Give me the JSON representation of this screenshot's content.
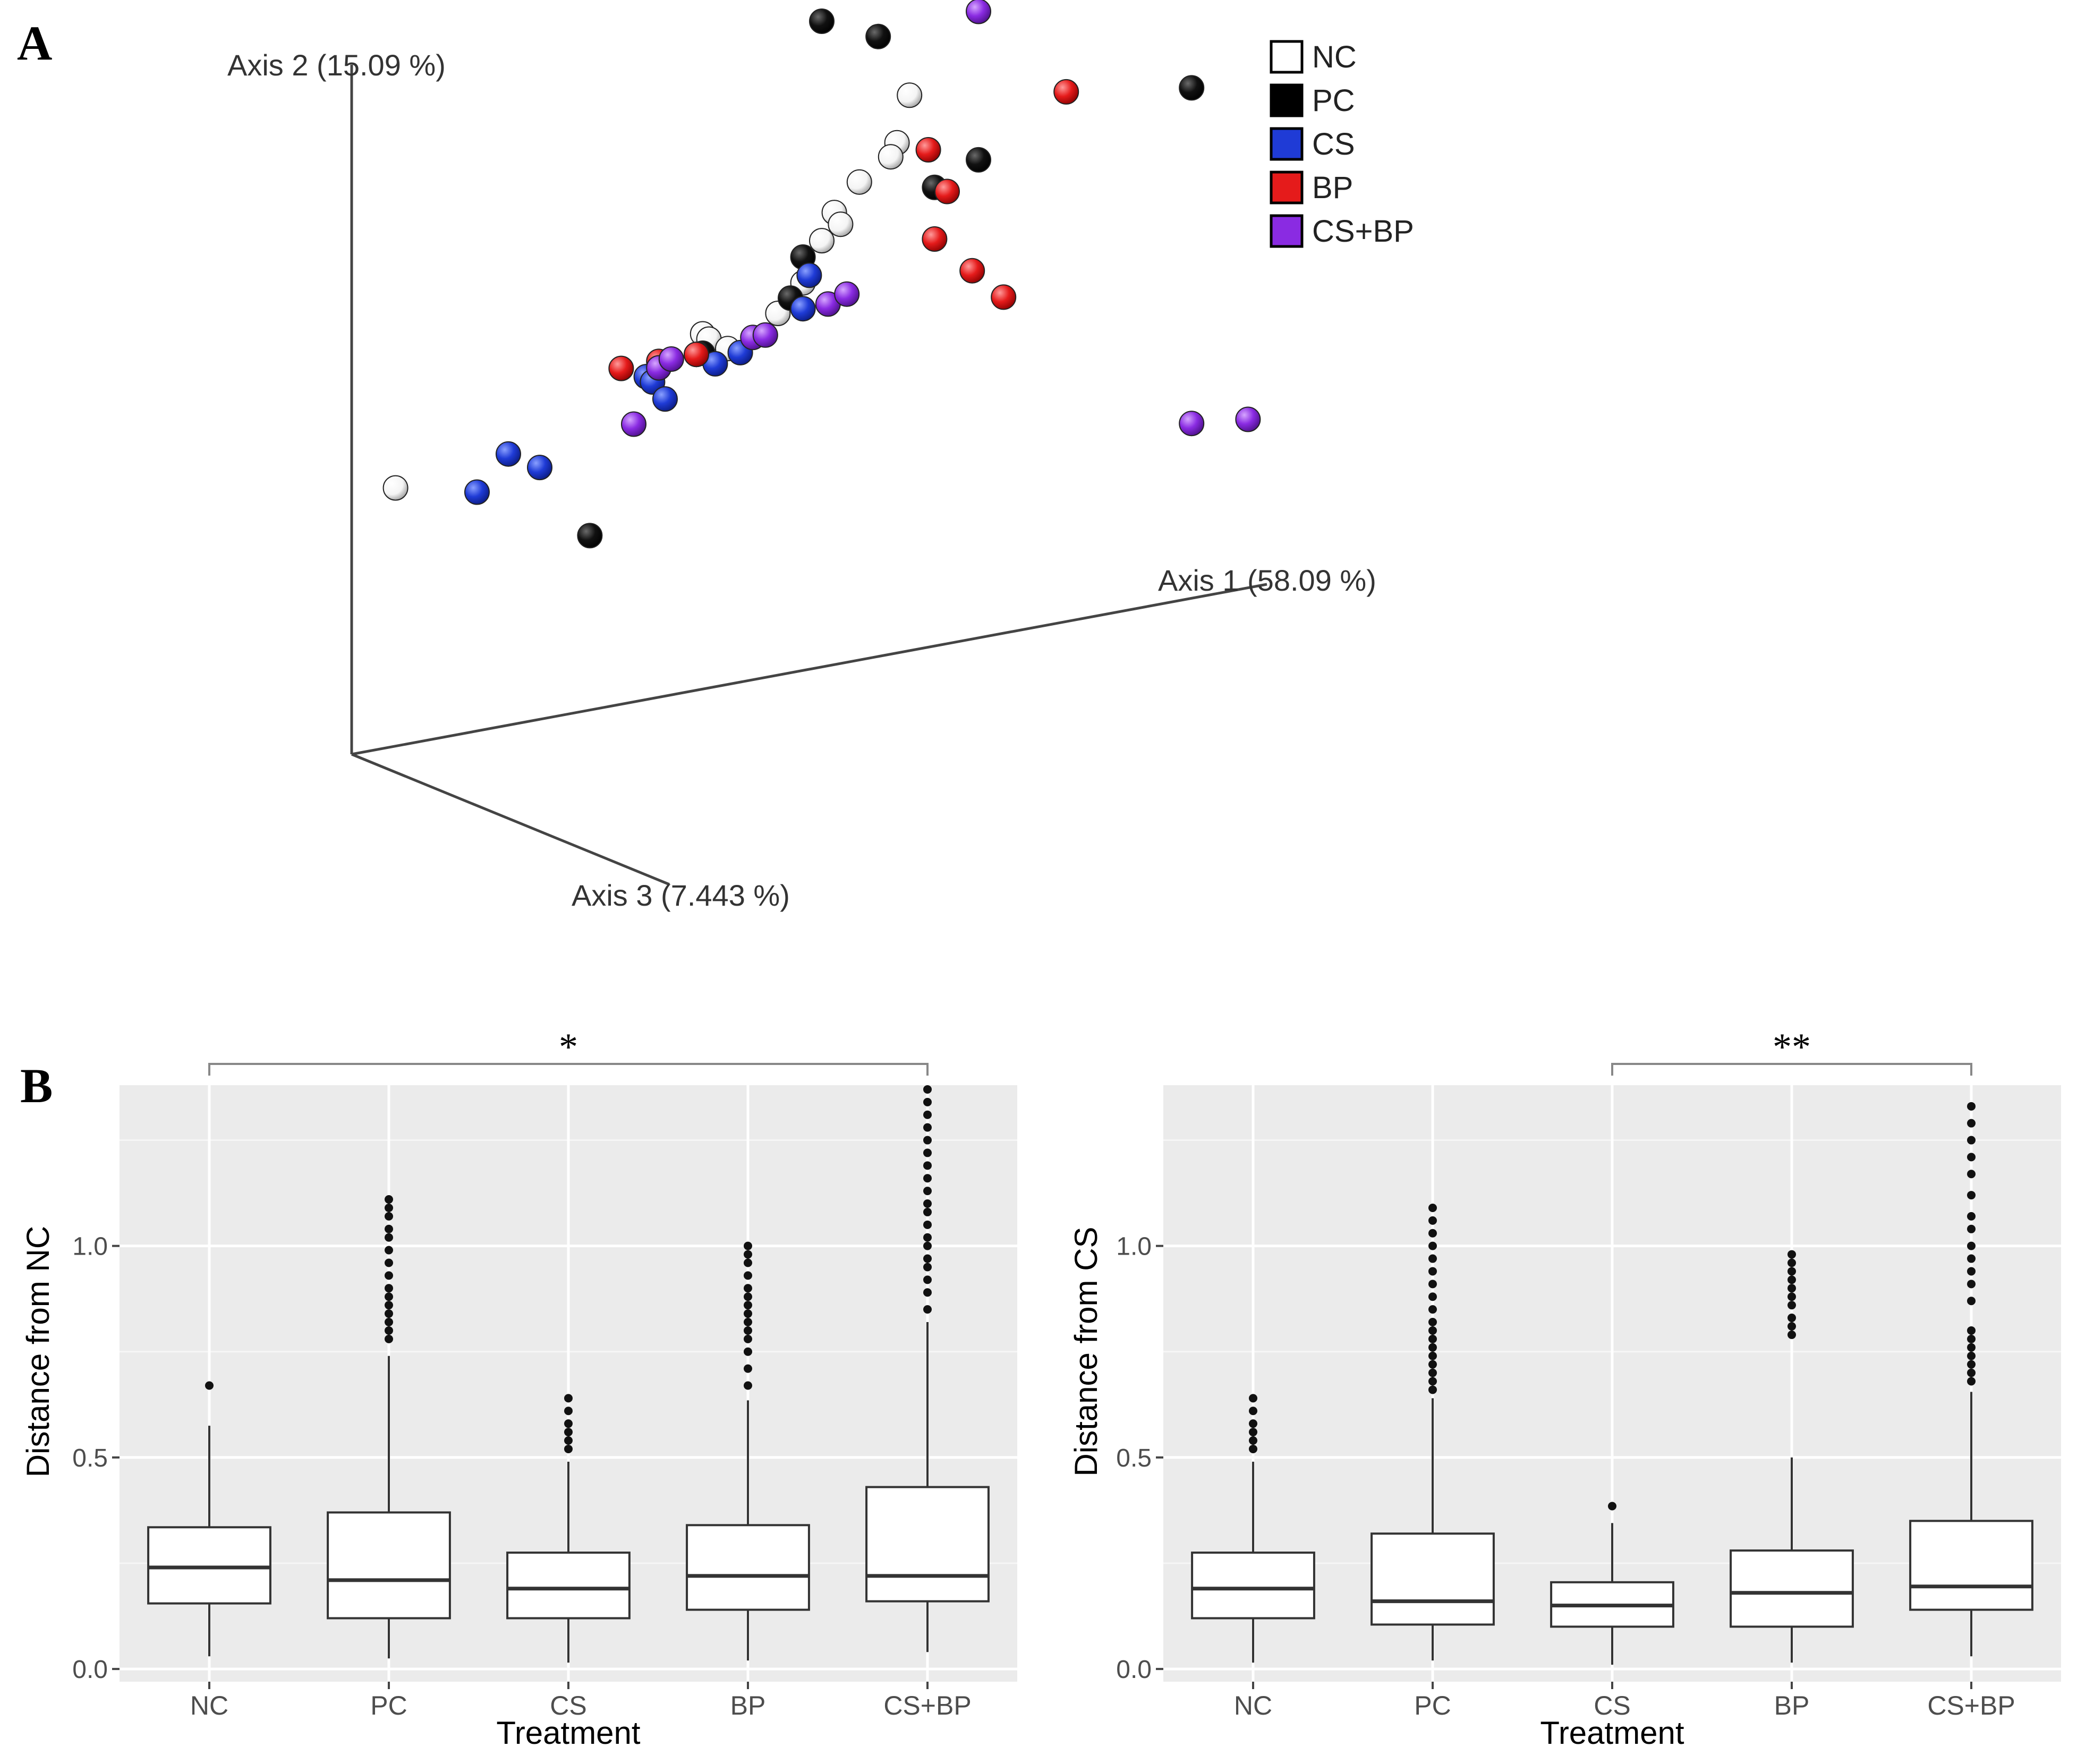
{
  "panel_a": {
    "label": "A",
    "chart_data": {
      "type": "scatter",
      "title": "",
      "axis_labels": [
        "Axis 1 (58.09 %)",
        "Axis 2 (15.09 %)",
        "Axis 3 (7.443 %)"
      ],
      "legend": [
        {
          "name": "NC",
          "color": "#ffffff"
        },
        {
          "name": "PC",
          "color": "#000000"
        },
        {
          "name": "CS",
          "color": "#1f3bd6"
        },
        {
          "name": "BP",
          "color": "#e51b1b"
        },
        {
          "name": "CS+BP",
          "color": "#8a2be2"
        }
      ],
      "series": [
        {
          "name": "NC",
          "color": "#ffffff",
          "points": [
            [
              0.89,
              0.86
            ],
            [
              0.87,
              0.79
            ],
            [
              0.86,
              0.77
            ],
            [
              0.81,
              0.74
            ],
            [
              0.77,
              0.7
            ],
            [
              0.78,
              0.68
            ],
            [
              0.75,
              0.66
            ],
            [
              0.56,
              0.55
            ],
            [
              0.57,
              0.54
            ],
            [
              0.6,
              0.52
            ],
            [
              0.68,
              0.56
            ],
            [
              0.72,
              0.6
            ],
            [
              0.07,
              0.4
            ]
          ]
        },
        {
          "name": "PC",
          "color": "#000000",
          "points": [
            [
              0.75,
              1.0
            ],
            [
              0.84,
              0.96
            ],
            [
              0.55,
              0.52
            ],
            [
              0.56,
              0.52
            ],
            [
              0.7,
              0.58
            ],
            [
              0.72,
              0.64
            ],
            [
              0.93,
              0.71
            ],
            [
              1.0,
              0.74
            ],
            [
              1.34,
              0.79
            ],
            [
              0.38,
              0.27
            ]
          ]
        },
        {
          "name": "CS",
          "color": "#1f3bd6",
          "points": [
            [
              0.47,
              0.5
            ],
            [
              0.58,
              0.5
            ],
            [
              0.62,
              0.51
            ],
            [
              0.72,
              0.56
            ],
            [
              0.73,
              0.61
            ],
            [
              0.48,
              0.49
            ],
            [
              0.5,
              0.46
            ],
            [
              0.25,
              0.42
            ],
            [
              0.3,
              0.39
            ],
            [
              0.2,
              0.37
            ]
          ]
        },
        {
          "name": "BP",
          "color": "#e51b1b",
          "points": [
            [
              0.43,
              0.52
            ],
            [
              0.49,
              0.52
            ],
            [
              0.55,
              0.52
            ],
            [
              0.92,
              0.77
            ],
            [
              0.95,
              0.7
            ],
            [
              0.93,
              0.63
            ],
            [
              0.99,
              0.57
            ],
            [
              1.04,
              0.52
            ],
            [
              1.14,
              0.82
            ]
          ]
        },
        {
          "name": "CS+BP",
          "color": "#8a2be2",
          "points": [
            [
              0.49,
              0.51
            ],
            [
              0.51,
              0.52
            ],
            [
              0.64,
              0.53
            ],
            [
              0.66,
              0.53
            ],
            [
              0.76,
              0.56
            ],
            [
              0.79,
              0.57
            ],
            [
              0.45,
              0.43
            ],
            [
              1.0,
              0.97
            ],
            [
              1.34,
              0.27
            ],
            [
              1.43,
              0.26
            ]
          ]
        }
      ]
    }
  },
  "panel_b": {
    "label": "B",
    "chart_data": [
      {
        "type": "box",
        "title": "",
        "xlabel": "Treatment",
        "ylabel": "Distance from NC",
        "ylim": [
          -0.03,
          1.38
        ],
        "yticks": [
          0.0,
          0.5,
          1.0
        ],
        "ytick_labels": [
          "0.0",
          "0.5",
          "1.0"
        ],
        "categories": [
          "NC",
          "PC",
          "CS",
          "BP",
          "CS+BP"
        ],
        "boxes": [
          {
            "category": "NC",
            "whisker_low": 0.03,
            "q1": 0.155,
            "median": 0.24,
            "q3": 0.335,
            "whisker_high": 0.575,
            "outliers": [
              0.67
            ]
          },
          {
            "category": "PC",
            "whisker_low": 0.025,
            "q1": 0.12,
            "median": 0.21,
            "q3": 0.37,
            "whisker_high": 0.74,
            "outliers": [
              0.78,
              0.8,
              0.82,
              0.84,
              0.86,
              0.88,
              0.9,
              0.93,
              0.96,
              0.99,
              1.02,
              1.04,
              1.07,
              1.09,
              1.11
            ]
          },
          {
            "category": "CS",
            "whisker_low": 0.015,
            "q1": 0.12,
            "median": 0.19,
            "q3": 0.275,
            "whisker_high": 0.49,
            "outliers": [
              0.52,
              0.54,
              0.56,
              0.58,
              0.61,
              0.64
            ]
          },
          {
            "category": "BP",
            "whisker_low": 0.02,
            "q1": 0.14,
            "median": 0.22,
            "q3": 0.34,
            "whisker_high": 0.635,
            "outliers": [
              0.67,
              0.71,
              0.75,
              0.78,
              0.8,
              0.82,
              0.84,
              0.86,
              0.88,
              0.9,
              0.93,
              0.96,
              0.98,
              1.0
            ]
          },
          {
            "category": "CS+BP",
            "whisker_low": 0.04,
            "q1": 0.16,
            "median": 0.22,
            "q3": 0.43,
            "whisker_high": 0.82,
            "outliers": [
              0.85,
              0.89,
              0.92,
              0.95,
              0.97,
              1.0,
              1.02,
              1.05,
              1.08,
              1.1,
              1.13,
              1.16,
              1.19,
              1.22,
              1.25,
              1.28,
              1.31,
              1.34,
              1.37
            ]
          }
        ],
        "significance": {
          "from": "NC",
          "to": "CS+BP",
          "label": "*"
        }
      },
      {
        "type": "box",
        "title": "",
        "xlabel": "Treatment",
        "ylabel": "Distance from CS",
        "ylim": [
          -0.03,
          1.38
        ],
        "yticks": [
          0.0,
          0.5,
          1.0
        ],
        "ytick_labels": [
          "0.0",
          "0.5",
          "1.0"
        ],
        "categories": [
          "NC",
          "PC",
          "CS",
          "BP",
          "CS+BP"
        ],
        "boxes": [
          {
            "category": "NC",
            "whisker_low": 0.015,
            "q1": 0.12,
            "median": 0.19,
            "q3": 0.275,
            "whisker_high": 0.49,
            "outliers": [
              0.52,
              0.54,
              0.56,
              0.58,
              0.61,
              0.64
            ]
          },
          {
            "category": "PC",
            "whisker_low": 0.02,
            "q1": 0.105,
            "median": 0.16,
            "q3": 0.32,
            "whisker_high": 0.64,
            "outliers": [
              0.66,
              0.68,
              0.7,
              0.72,
              0.74,
              0.76,
              0.78,
              0.8,
              0.82,
              0.85,
              0.88,
              0.91,
              0.94,
              0.97,
              1.0,
              1.03,
              1.06,
              1.09
            ]
          },
          {
            "category": "CS",
            "whisker_low": 0.01,
            "q1": 0.1,
            "median": 0.15,
            "q3": 0.205,
            "whisker_high": 0.345,
            "outliers": [
              0.385
            ]
          },
          {
            "category": "BP",
            "whisker_low": 0.015,
            "q1": 0.1,
            "median": 0.18,
            "q3": 0.28,
            "whisker_high": 0.5,
            "outliers": [
              0.79,
              0.81,
              0.83,
              0.86,
              0.88,
              0.9,
              0.92,
              0.94,
              0.96,
              0.98
            ]
          },
          {
            "category": "CS+BP",
            "whisker_low": 0.03,
            "q1": 0.14,
            "median": 0.195,
            "q3": 0.35,
            "whisker_high": 0.655,
            "outliers": [
              0.68,
              0.7,
              0.72,
              0.74,
              0.76,
              0.78,
              0.8,
              0.87,
              0.91,
              0.94,
              0.97,
              1.0,
              1.04,
              1.07,
              1.12,
              1.17,
              1.21,
              1.25,
              1.29,
              1.33
            ]
          }
        ],
        "significance": {
          "from": "CS",
          "to": "CS+BP",
          "label": "**"
        }
      }
    ]
  }
}
